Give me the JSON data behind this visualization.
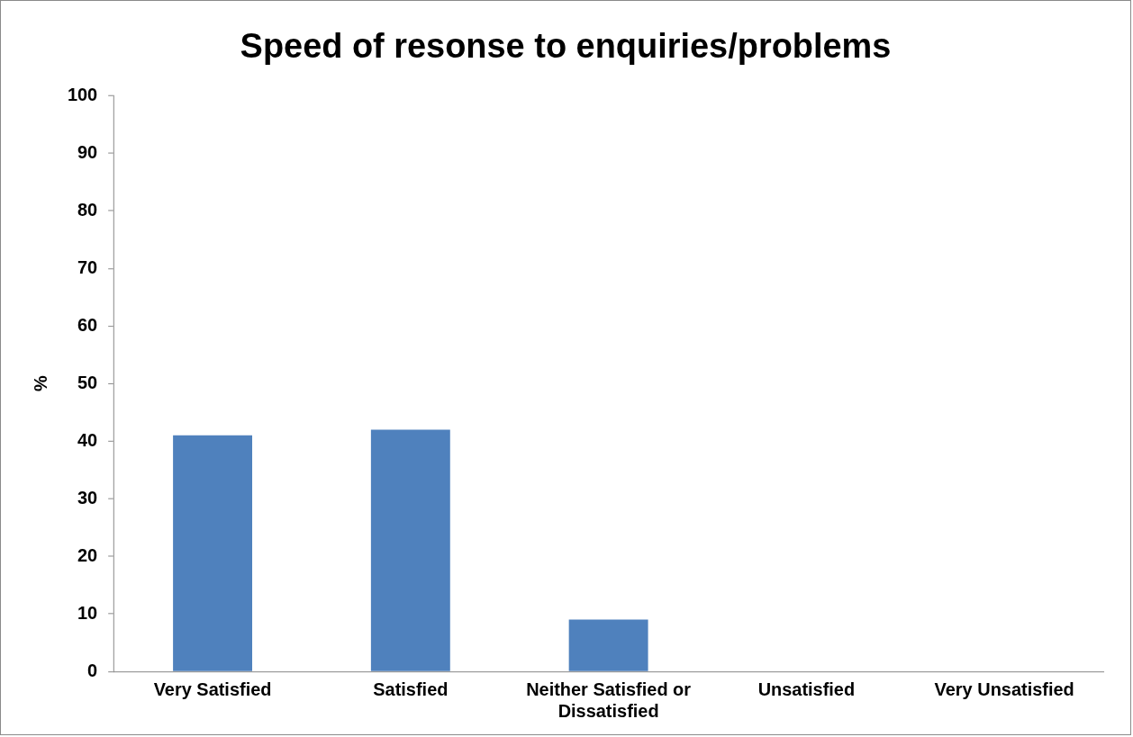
{
  "chart_data": {
    "type": "bar",
    "title": "Speed of resonse to enquiries/problems",
    "ylabel": "%",
    "categories": [
      "Very Satisfied",
      "Satisfied",
      "Neither Satisfied or Dissatisfied",
      "Unsatisfied",
      "Very Unsatisfied"
    ],
    "values": [
      41,
      42,
      9,
      0,
      0
    ],
    "color": "#4f81bd",
    "ylim": [
      0,
      100
    ],
    "yticks": [
      0,
      10,
      20,
      30,
      40,
      50,
      60,
      70,
      80,
      90,
      100
    ],
    "grid": false,
    "legend": false
  }
}
